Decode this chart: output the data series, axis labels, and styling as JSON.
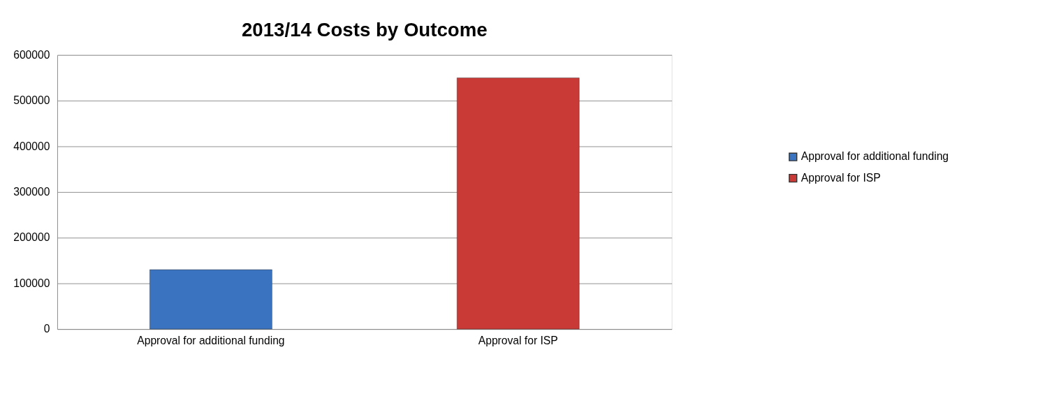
{
  "chart_data": {
    "type": "bar",
    "title": "2013/14 Costs by Outcome",
    "categories": [
      "Approval for additional funding",
      "Approval for ISP"
    ],
    "series": [
      {
        "name": "Approval for additional funding",
        "color": "#3a74c0",
        "values": [
          130000,
          null
        ]
      },
      {
        "name": "Approval for ISP",
        "color": "#c93a37",
        "values": [
          null,
          550000
        ]
      }
    ],
    "ylim": [
      0,
      600000
    ],
    "yticks": [
      0,
      100000,
      200000,
      300000,
      400000,
      500000,
      600000
    ],
    "grid": "y",
    "legend": "right"
  }
}
